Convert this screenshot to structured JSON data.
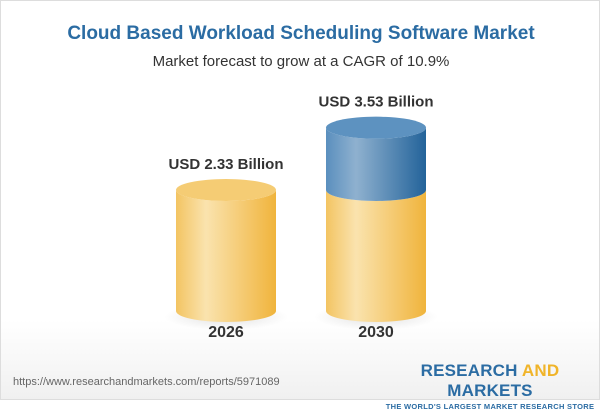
{
  "chart_data": {
    "type": "bar",
    "style": "3d-cylinder",
    "title": "Cloud Based Workload Scheduling Software Market",
    "subtitle": "Market forecast to grow at a CAGR of 10.9%",
    "categories": [
      "2026",
      "2030"
    ],
    "values": [
      2.33,
      3.53
    ],
    "data_labels": [
      "USD 2.33 Billion",
      "USD 3.53 Billion"
    ],
    "unit": "USD Billion",
    "colors": {
      "base": "#f3c463",
      "growth": "#4a84b5"
    }
  },
  "footer": {
    "url": "https://www.researchandmarkets.com/reports/5971089",
    "logo_part1": "RESEARCH ",
    "logo_part2": "AND",
    "logo_part3": " MARKETS",
    "tagline": "THE WORLD'S LARGEST MARKET RESEARCH STORE"
  }
}
